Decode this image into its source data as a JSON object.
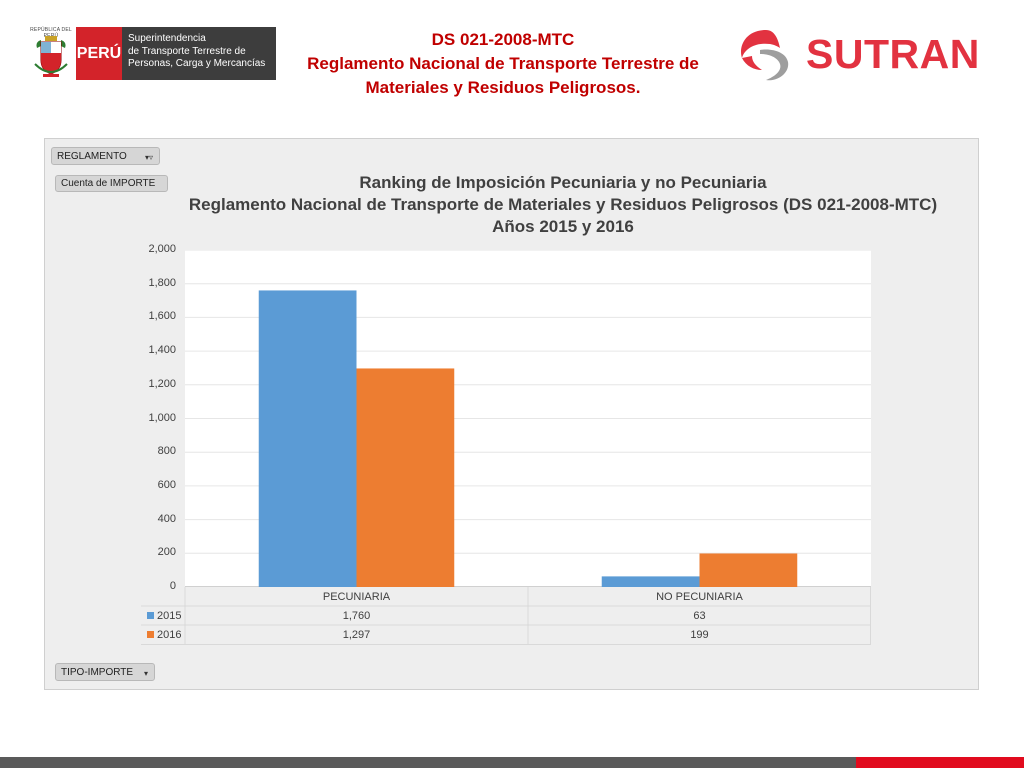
{
  "header": {
    "shield_caption": "REPÚBLICA DEL PERÚ",
    "peru_label": "PERÚ",
    "agency_lines": [
      "Superintendencia",
      "de Transporte Terrestre de",
      "Personas, Carga y Mercancías"
    ],
    "title_lines": [
      "DS 021-2008-MTC",
      "Reglamento Nacional de Transporte Terrestre de",
      "Materiales y Residuos Peligrosos."
    ],
    "sutran_label": "SUTRAN"
  },
  "pivot": {
    "filter_label": "REGLAMENTO",
    "value_field_label": "Cuenta de IMPORTE",
    "axis_field_label": "TIPO-IMPORTE"
  },
  "colors": {
    "series_2015": "#5b9bd5",
    "series_2016": "#ed7d31",
    "brand_red": "#e23240",
    "title_red": "#c00000"
  },
  "chart_data": {
    "type": "bar",
    "title_lines": [
      "Ranking de Imposición Pecuniaria y no Pecuniaria",
      "Reglamento Nacional de Transporte de Materiales y Residuos Peligrosos (DS 021-2008-MTC)",
      "Años 2015 y 2016"
    ],
    "categories": [
      "PECUNIARIA",
      "NO PECUNIARIA"
    ],
    "series": [
      {
        "name": "2015",
        "values": [
          1760,
          63
        ],
        "labels": [
          "1,760",
          "63"
        ]
      },
      {
        "name": "2016",
        "values": [
          1297,
          199
        ],
        "labels": [
          "1,297",
          "199"
        ]
      }
    ],
    "ylim": [
      0,
      2000
    ],
    "yticks": [
      "0",
      "200",
      "400",
      "600",
      "800",
      "1,000",
      "1,200",
      "1,400",
      "1,600",
      "1,800",
      "2,000"
    ],
    "grid": true,
    "legend": "data-table"
  }
}
